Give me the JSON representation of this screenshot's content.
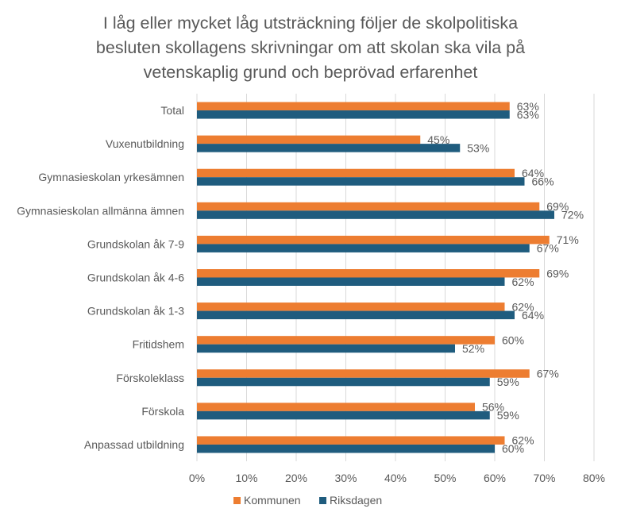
{
  "chart_data": {
    "type": "bar",
    "orientation": "horizontal",
    "title_lines": [
      "I låg eller mycket låg utsträckning följer de skolpolitiska",
      "besluten skollagens skrivningar om att skolan ska vila på",
      "vetenskaplig grund och beprövad erfarenhet"
    ],
    "categories": [
      "Total",
      "Vuxenutbildning",
      "Gymnasieskolan yrkesämnen",
      "Gymnasieskolan allmänna ämnen",
      "Grundskolan åk 7-9",
      "Grundskolan åk 4-6",
      "Grundskolan åk 1-3",
      "Fritidshem",
      "Förskoleklass",
      "Förskola",
      "Anpassad utbildning"
    ],
    "series": [
      {
        "name": "Kommunen",
        "color": "#ED7D31",
        "values": [
          63,
          45,
          64,
          69,
          71,
          69,
          62,
          60,
          67,
          56,
          62
        ],
        "labels": [
          "63%",
          "45%",
          "64%",
          "69%",
          "71%",
          "69%",
          "62%",
          "60%",
          "67%",
          "56%",
          "62%"
        ]
      },
      {
        "name": "Riksdagen",
        "color": "#1F5C7E",
        "values": [
          63,
          53,
          66,
          72,
          67,
          62,
          64,
          52,
          59,
          59,
          60
        ],
        "labels": [
          "63%",
          "53%",
          "66%",
          "72%",
          "67%",
          "62%",
          "64%",
          "52%",
          "59%",
          "59%",
          "60%"
        ]
      }
    ],
    "xlim": [
      0,
      80
    ],
    "ticks": [
      0,
      10,
      20,
      30,
      40,
      50,
      60,
      70,
      80
    ],
    "tick_labels": [
      "0%",
      "10%",
      "20%",
      "30%",
      "40%",
      "50%",
      "60%",
      "70%",
      "80%"
    ],
    "grid": true,
    "legend_position": "bottom"
  }
}
